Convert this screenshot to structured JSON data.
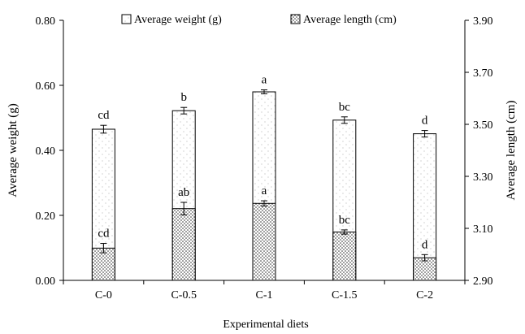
{
  "chart_data": {
    "type": "bar",
    "xlabel": "Experimental diets",
    "categories": [
      "C-0",
      "C-0.5",
      "C-1",
      "C-1.5",
      "C-2"
    ],
    "y_left": {
      "label": "Average weight (g)",
      "range": [
        0,
        0.8
      ],
      "ticks": [
        "0.00",
        "0.20",
        "0.40",
        "0.60",
        "0.80"
      ]
    },
    "y_right": {
      "label": "Average length (cm)",
      "range": [
        2.9,
        3.9
      ],
      "ticks": [
        "2.90",
        "3.10",
        "3.30",
        "3.50",
        "3.70",
        "3.90"
      ]
    },
    "grid": false,
    "legend_position": "top",
    "series": [
      {
        "name": "Average weight (g)",
        "axis": "left",
        "pattern": "light-dots",
        "values": [
          0.465,
          0.522,
          0.58,
          0.493,
          0.451
        ],
        "errors": [
          0.012,
          0.01,
          0.006,
          0.01,
          0.01
        ],
        "letters": [
          "cd",
          "b",
          "a",
          "bc",
          "d"
        ]
      },
      {
        "name": "Average length (cm)",
        "axis": "right",
        "pattern": "dense-dots",
        "values": [
          3.024,
          3.176,
          3.196,
          3.086,
          2.987
        ],
        "errors": [
          0.018,
          0.024,
          0.01,
          0.008,
          0.012
        ],
        "letters": [
          "cd",
          "ab",
          "a",
          "bc",
          "d"
        ]
      }
    ]
  }
}
